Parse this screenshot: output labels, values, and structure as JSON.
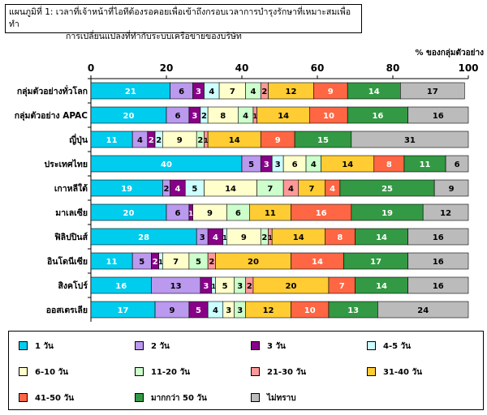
{
  "title": {
    "line1": "แผนภูมิที่ 1:  เวลาที่เจ้าหน้าที่ไอทีต้องรอคอยเพื่อเข้าถึงกรอบเวลาการบำรุงรักษาที่เหมาะสมเพื่อทำ",
    "line2": "การเปลี่ยนแปลงที่ทำกับระบบเครือข่ายของบริษัท"
  },
  "chart_data": {
    "type": "bar",
    "orientation": "horizontal-stacked",
    "unit_label": "% ของกลุ่มตัวอย่าง",
    "xlim": [
      0,
      100
    ],
    "x_ticks": [
      0,
      20,
      40,
      60,
      80,
      100
    ],
    "categories": [
      "กลุ่มตัวอย่างทั่วโลก",
      "กลุ่มตัวอย่าง APAC",
      "ญี่ปุ่น",
      "ประเทศไทย",
      "เกาหลีใต้",
      "มาเลเซีย",
      "ฟิลิปปินส์",
      "อินโดนีเซีย",
      "สิงคโปร์",
      "ออสเตรเลีย"
    ],
    "series": [
      {
        "name": "1 วัน",
        "color": "#00CCEE",
        "values": [
          21,
          20,
          11,
          40,
          19,
          20,
          28,
          11,
          16,
          17
        ]
      },
      {
        "name": "2 วัน",
        "color": "#BB99EE",
        "values": [
          6,
          6,
          4,
          5,
          2,
          6,
          3,
          5,
          13,
          9
        ]
      },
      {
        "name": "3 วัน",
        "color": "#880088",
        "values": [
          3,
          3,
          2,
          3,
          4,
          1,
          4,
          2,
          3,
          5
        ]
      },
      {
        "name": "4-5 วัน",
        "color": "#CCFFFF",
        "values": [
          4,
          2,
          2,
          3,
          5,
          0,
          1,
          1,
          1,
          4
        ]
      },
      {
        "name": "6-10 วัน",
        "color": "#FFFFCC",
        "values": [
          7,
          8,
          9,
          6,
          14,
          9,
          9,
          7,
          5,
          3
        ]
      },
      {
        "name": "11-20 วัน",
        "color": "#CCFFCC",
        "values": [
          4,
          4,
          2,
          4,
          7,
          6,
          2,
          5,
          3,
          3
        ]
      },
      {
        "name": "21-30 วัน",
        "color": "#FF9999",
        "values": [
          2,
          1,
          1,
          0,
          4,
          0,
          1,
          2,
          2,
          0
        ]
      },
      {
        "name": "31-40 วัน",
        "color": "#FFCC33",
        "values": [
          12,
          14,
          14,
          14,
          7,
          11,
          14,
          20,
          20,
          12
        ]
      },
      {
        "name": "41-50 วัน",
        "color": "#FF6644",
        "values": [
          9,
          10,
          9,
          8,
          4,
          16,
          8,
          14,
          7,
          10
        ]
      },
      {
        "name": "มากกว่า 50 วัน",
        "color": "#339944",
        "values": [
          14,
          16,
          15,
          11,
          25,
          19,
          14,
          17,
          14,
          13
        ]
      },
      {
        "name": "ไม่ทราบ",
        "color": "#BBBBBB",
        "values": [
          17,
          16,
          31,
          6,
          9,
          12,
          16,
          16,
          16,
          24
        ]
      }
    ],
    "legend_position": "bottom"
  }
}
